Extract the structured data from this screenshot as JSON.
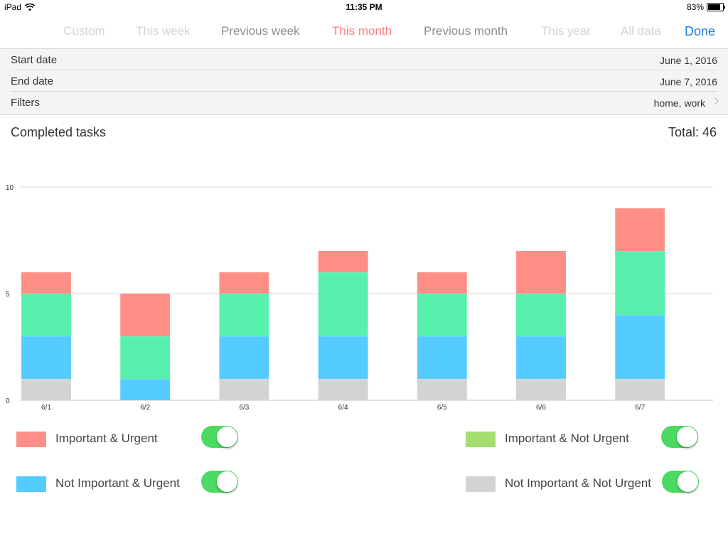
{
  "status_bar": {
    "device": "iPad",
    "time": "11:35 PM",
    "battery": "83%",
    "battery_level": 0.83
  },
  "range_tabs": {
    "items": [
      {
        "label": "Custom",
        "state": "faded"
      },
      {
        "label": "This week",
        "state": "faded"
      },
      {
        "label": "Previous week",
        "state": "normal"
      },
      {
        "label": "This month",
        "state": "active"
      },
      {
        "label": "Previous month",
        "state": "normal"
      },
      {
        "label": "This year",
        "state": "faded"
      },
      {
        "label": "All data",
        "state": "faded"
      }
    ],
    "done_label": "Done"
  },
  "settings": {
    "start_date_label": "Start date",
    "start_date_value": "June 1, 2016",
    "end_date_label": "End date",
    "end_date_value": "June 7, 2016",
    "filters_label": "Filters",
    "filters_value": "home, work"
  },
  "chart_header": {
    "title": "Completed tasks",
    "total": "Total: 46"
  },
  "colors": {
    "important_urgent": "#ff8e87",
    "important_not_urgent": "#a6dd6f",
    "not_important_urgent": "#55ccff",
    "not_important_not_urgent": "#d3d3d3",
    "not_important_urgent_bar": "#55ccff",
    "important_not_urgent_bar": "#57f0ad",
    "toggle_on": "#4cd964"
  },
  "chart_data": {
    "type": "bar",
    "stacked": true,
    "categories": [
      "6/1",
      "6/2",
      "6/3",
      "6/4",
      "6/5",
      "6/6",
      "6/7"
    ],
    "series": [
      {
        "name": "Not Important & Not Urgent",
        "values": [
          1,
          0,
          1,
          1,
          1,
          1,
          1
        ]
      },
      {
        "name": "Not Important & Urgent",
        "values": [
          2,
          1,
          2,
          2,
          2,
          2,
          3
        ]
      },
      {
        "name": "Important & Not Urgent",
        "values": [
          2,
          2,
          2,
          3,
          2,
          2,
          3
        ]
      },
      {
        "name": "Important & Urgent",
        "values": [
          1,
          2,
          1,
          1,
          1,
          2,
          2
        ]
      }
    ],
    "yticks": [
      "0",
      "5",
      "10"
    ],
    "ylim": [
      0,
      10
    ],
    "title": "Completed tasks"
  },
  "legend": {
    "items": [
      {
        "label": "Important & Urgent",
        "enabled": true
      },
      {
        "label": "Important & Not Urgent",
        "enabled": true
      },
      {
        "label": "Not Important & Urgent",
        "enabled": true
      },
      {
        "label": "Not Important & Not Urgent",
        "enabled": true
      }
    ]
  }
}
